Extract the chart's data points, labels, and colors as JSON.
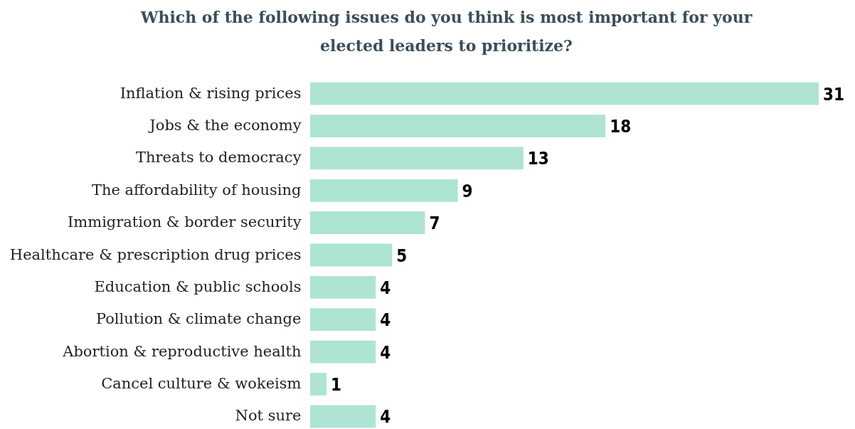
{
  "chart_data": {
    "type": "bar",
    "orientation": "horizontal",
    "data_labels": true,
    "title": "Which of the following issues do you think is most important for your elected leaders to prioritize?",
    "categories": [
      "Inflation & rising prices",
      "Jobs & the economy",
      "Threats to democracy",
      "The affordability of housing",
      "Immigration & border security",
      "Healthcare & prescription drug prices",
      "Education & public schools",
      "Pollution & climate change",
      "Abortion & reproductive health",
      "Cancel culture & wokeism",
      "Not sure"
    ],
    "values": [
      31,
      18,
      13,
      9,
      7,
      5,
      4,
      4,
      4,
      1,
      4
    ],
    "color": "#aee4d3"
  }
}
